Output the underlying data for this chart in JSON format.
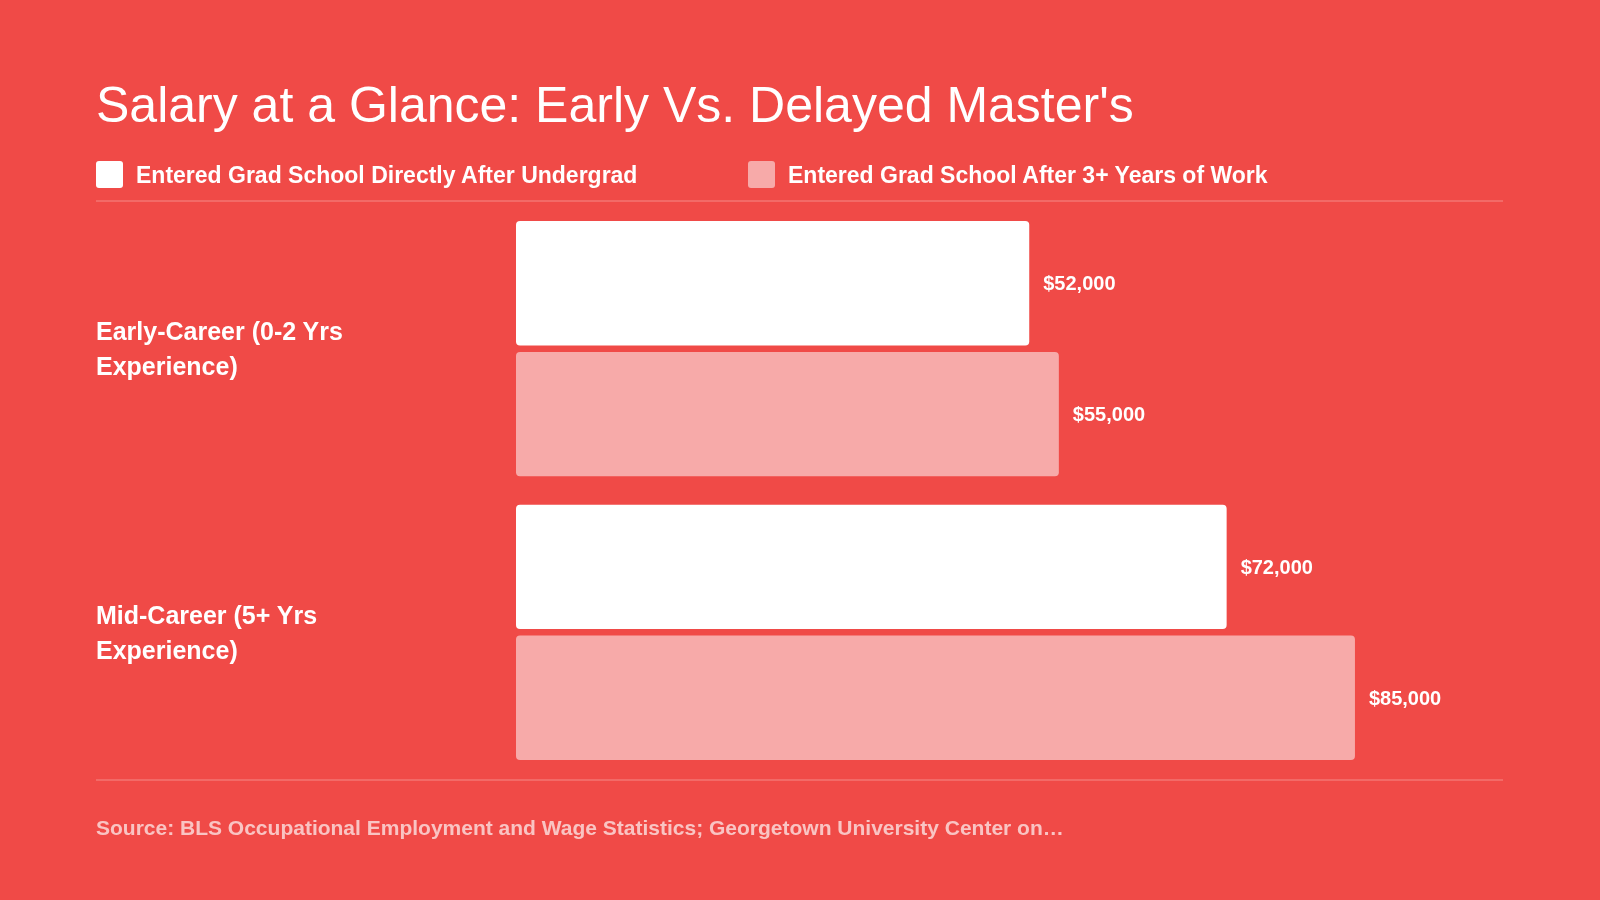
{
  "chart_data": {
    "type": "bar",
    "orientation": "horizontal",
    "title": "Salary at a Glance: Early Vs. Delayed Master's",
    "categories": [
      "Early-Career (0-2 Yrs Experience)",
      "Mid-Career (5+ Yrs Experience)"
    ],
    "series": [
      {
        "name": "Entered Grad School Directly After Undergrad",
        "color": "#ffffff",
        "values": [
          52000,
          72000
        ],
        "value_labels": [
          "$52,000",
          "$72,000"
        ]
      },
      {
        "name": "Entered Grad School After 3+ Years of Work",
        "color": "#f7aaa9",
        "values": [
          55000,
          85000
        ],
        "value_labels": [
          "$55,000",
          "$85,000"
        ]
      }
    ],
    "xlim": [
      0,
      100000
    ],
    "legend": "top left",
    "annotations": [
      "Source: BLS Occupational Employment and Wage Statistics; Georgetown University Center on…"
    ]
  }
}
